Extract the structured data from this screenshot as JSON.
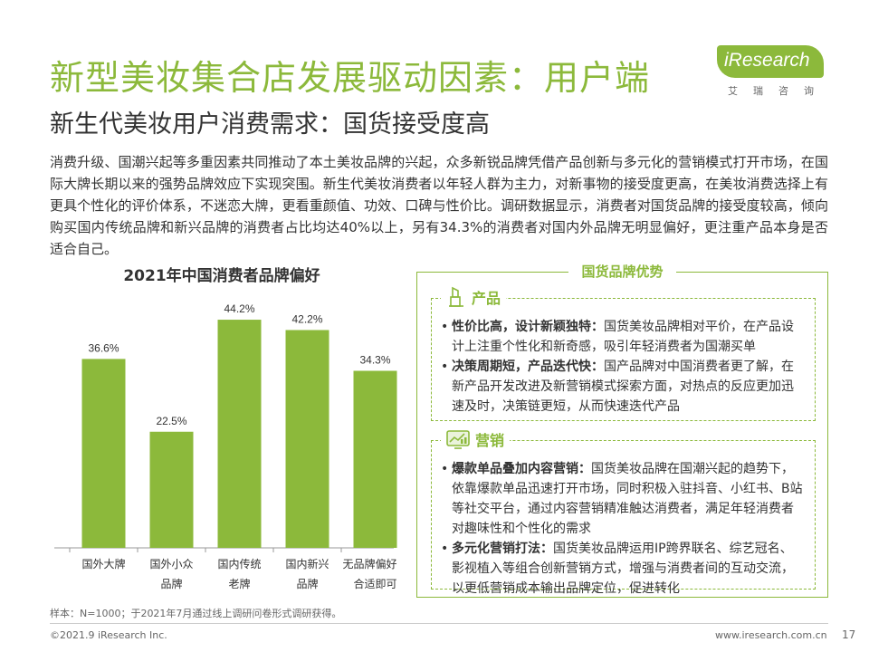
{
  "header": {
    "title": "新型美妆集合店发展驱动因素：用户端",
    "subtitle": "新生代美妆用户消费需求：国货接受度高"
  },
  "logo": {
    "text": "iResearch",
    "sub": "艾瑞咨询"
  },
  "intro": "消费升级、国潮兴起等多重因素共同推动了本土美妆品牌的兴起，众多新锐品牌凭借产品创新与多元化的营销模式打开市场，在国际大牌长期以来的强势品牌效应下实现突围。新生代美妆消费者以年轻人群为主力，对新事物的接受度更高，在美妆消费选择上有更具个性化的评价体系，不迷恋大牌，更看重颜值、功效、口碑与性价比。调研数据显示，消费者对国货品牌的接受度较高，倾向购买国内传统品牌和新兴品牌的消费者占比均达40%以上，另有34.3%的消费者对国内外品牌无明显偏好，更注重产品本身是否适合自己。",
  "chart_data": {
    "type": "bar",
    "title": "2021年中国消费者品牌偏好",
    "categories": [
      "国外大牌",
      "国外小众品牌",
      "国内传统老牌",
      "国内新兴品牌",
      "无品牌偏好，合适即可"
    ],
    "category_lines": [
      [
        "国外大牌"
      ],
      [
        "国外小众",
        "品牌"
      ],
      [
        "国内传统",
        "老牌"
      ],
      [
        "国内新兴",
        "品牌"
      ],
      [
        "无品牌偏好，",
        "合适即可"
      ]
    ],
    "values": [
      36.6,
      22.5,
      44.2,
      42.2,
      34.3
    ],
    "value_labels": [
      "36.6%",
      "22.5%",
      "44.2%",
      "42.2%",
      "34.3%"
    ],
    "ylim": [
      0,
      50
    ],
    "color": "#8cb93b",
    "grid": false
  },
  "note": "样本：N=1000；于2021年7月通过线上调研问卷形式调研获得。",
  "footer": {
    "copyright": "©2021.9 iResearch Inc.",
    "website": "www.iresearch.com.cn",
    "page": "17"
  },
  "panel": {
    "title": "国货品牌优势",
    "product": {
      "heading": "产品",
      "icon": "lipstick-icon",
      "items": [
        {
          "bold": "性价比高，设计新颖独特：",
          "text": "国货美妆品牌相对平价，在产品设计上注重个性化和新奇感，吸引年轻消费者为国潮买单"
        },
        {
          "bold": "决策周期短，产品迭代快：",
          "text": "国产品牌对中国消费者更了解，在新产品开发改进及新营销模式探索方面，对热点的反应更加迅速及时，决策链更短，从而快速迭代产品"
        }
      ]
    },
    "marketing": {
      "heading": "营销",
      "icon": "screen-chart-icon",
      "items": [
        {
          "bold": "爆款单品叠加内容营销：",
          "text": "国货美妆品牌在国潮兴起的趋势下，依靠爆款单品迅速打开市场，同时积极入驻抖音、小红书、B站等社交平台，通过内容营销精准触达消费者，满足年轻消费者对趣味性和个性化的需求"
        },
        {
          "bold": "多元化营销打法：",
          "text": "国货美妆品牌运用IP跨界联名、综艺冠名、影视植入等组合创新营销方式，增强与消费者间的互动交流，以更低营销成本输出品牌定位，促进转化"
        }
      ]
    }
  },
  "colors": {
    "accent": "#8cb93b"
  }
}
